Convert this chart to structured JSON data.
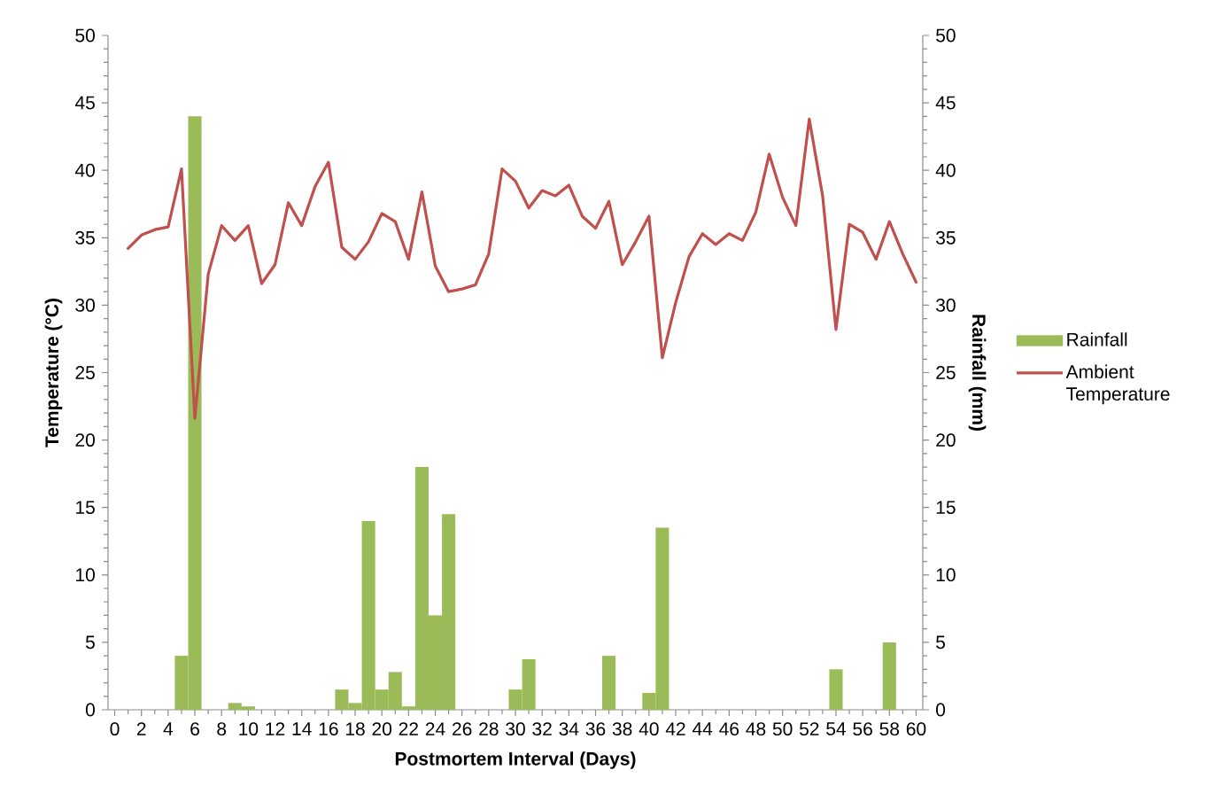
{
  "chart_data": {
    "type": "bar",
    "xlabel": "Postmortem Interval (Days)",
    "ylabel": "Temperature (°C)",
    "y2label": "Rainfall (mm)",
    "xlim": [
      -0.5,
      60.5
    ],
    "xticks": [
      0,
      2,
      4,
      6,
      8,
      10,
      12,
      14,
      16,
      18,
      20,
      22,
      24,
      26,
      28,
      30,
      32,
      34,
      36,
      38,
      40,
      42,
      44,
      46,
      48,
      50,
      52,
      54,
      56,
      58,
      60
    ],
    "ylim": [
      0,
      50
    ],
    "yticks": [
      0,
      5,
      10,
      15,
      20,
      25,
      30,
      35,
      40,
      45,
      50
    ],
    "y2lim": [
      0,
      50
    ],
    "y2ticks": [
      0,
      5,
      10,
      15,
      20,
      25,
      30,
      35,
      40,
      45,
      50
    ],
    "legend": "right",
    "series": [
      {
        "name": "Rainfall",
        "axis": "y2",
        "color": "#9bbb59",
        "x": [
          0,
          1,
          2,
          3,
          4,
          5,
          6,
          7,
          8,
          9,
          10,
          11,
          12,
          13,
          14,
          15,
          16,
          17,
          18,
          19,
          20,
          21,
          22,
          23,
          24,
          25,
          26,
          27,
          28,
          29,
          30,
          31,
          32,
          33,
          34,
          35,
          36,
          37,
          38,
          39,
          40,
          41,
          42,
          43,
          44,
          45,
          46,
          47,
          48,
          49,
          50,
          51,
          52,
          53,
          54,
          55,
          56,
          57,
          58,
          59,
          60
        ],
        "values": [
          0,
          0,
          0,
          0,
          0,
          4,
          44,
          0,
          0,
          0.5,
          0.25,
          0,
          0,
          0,
          0,
          0,
          0,
          1.5,
          0.5,
          14,
          1.5,
          2.8,
          0.25,
          18,
          7,
          14.5,
          0,
          0,
          0,
          0,
          1.5,
          3.75,
          0,
          0,
          0,
          0,
          0,
          4,
          0,
          0,
          1.25,
          13.5,
          0,
          0,
          0,
          0,
          0,
          0,
          0,
          0,
          0,
          0,
          0,
          0,
          3,
          0,
          0,
          0,
          5,
          0,
          0
        ]
      },
      {
        "name": "Ambient Temperature",
        "type": "line",
        "color": "#c0504d",
        "x": [
          1,
          2,
          3,
          4,
          5,
          6,
          7,
          8,
          9,
          10,
          11,
          12,
          13,
          14,
          15,
          16,
          17,
          18,
          19,
          20,
          21,
          22,
          23,
          24,
          25,
          26,
          27,
          28,
          29,
          30,
          31,
          32,
          33,
          34,
          35,
          36,
          37,
          38,
          39,
          40,
          41,
          42,
          43,
          44,
          45,
          46,
          47,
          48,
          49,
          50,
          51,
          52,
          53,
          54,
          55,
          56,
          57,
          58,
          59,
          60
        ],
        "values": [
          34.2,
          35.2,
          35.6,
          35.8,
          40.1,
          21.6,
          32.3,
          35.9,
          34.8,
          35.9,
          31.6,
          33.0,
          37.6,
          35.9,
          38.8,
          40.6,
          34.3,
          33.4,
          34.7,
          36.8,
          36.2,
          33.4,
          38.4,
          32.9,
          31.0,
          31.2,
          31.5,
          33.8,
          40.1,
          39.2,
          37.2,
          38.5,
          38.1,
          38.9,
          36.6,
          35.7,
          37.7,
          33.0,
          34.7,
          36.6,
          26.1,
          30.2,
          33.6,
          35.3,
          34.5,
          35.3,
          34.8,
          36.9,
          41.2,
          38.0,
          35.9,
          43.8,
          38.1,
          28.2,
          36.0,
          35.4,
          33.4,
          36.2,
          33.8,
          31.7
        ]
      }
    ]
  }
}
